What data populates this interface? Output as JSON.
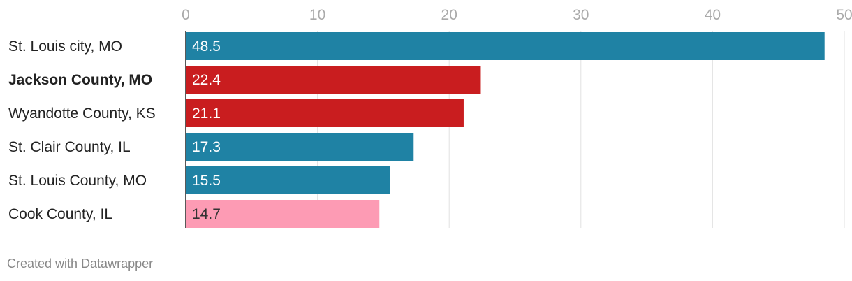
{
  "chart_data": {
    "type": "bar",
    "orientation": "horizontal",
    "categories": [
      "St. Louis city, MO",
      "Jackson County, MO",
      "Wyandotte County, KS",
      "St. Clair County, IL",
      "St. Louis County, MO",
      "Cook County, IL"
    ],
    "values": [
      48.5,
      22.4,
      21.1,
      17.3,
      15.5,
      14.7
    ],
    "value_labels": [
      "48.5",
      "22.4",
      "21.1",
      "17.3",
      "15.5",
      "14.7"
    ],
    "bar_colors": [
      "#1f82a4",
      "#c91d1f",
      "#c91d1f",
      "#1f82a4",
      "#1f82a4",
      "#fd9bb4"
    ],
    "value_label_colors": [
      "#ffffff",
      "#ffffff",
      "#ffffff",
      "#ffffff",
      "#ffffff",
      "#333333"
    ],
    "bold_categories": [
      "Jackson County, MO"
    ],
    "xlim": [
      0,
      50
    ],
    "ticks": [
      0,
      10,
      20,
      30,
      40,
      50
    ],
    "tick_labels": [
      "0",
      "10",
      "20",
      "30",
      "40",
      "50"
    ],
    "grid": true,
    "title": "",
    "xlabel": "",
    "ylabel": ""
  },
  "footer": {
    "credit": "Created with Datawrapper"
  }
}
